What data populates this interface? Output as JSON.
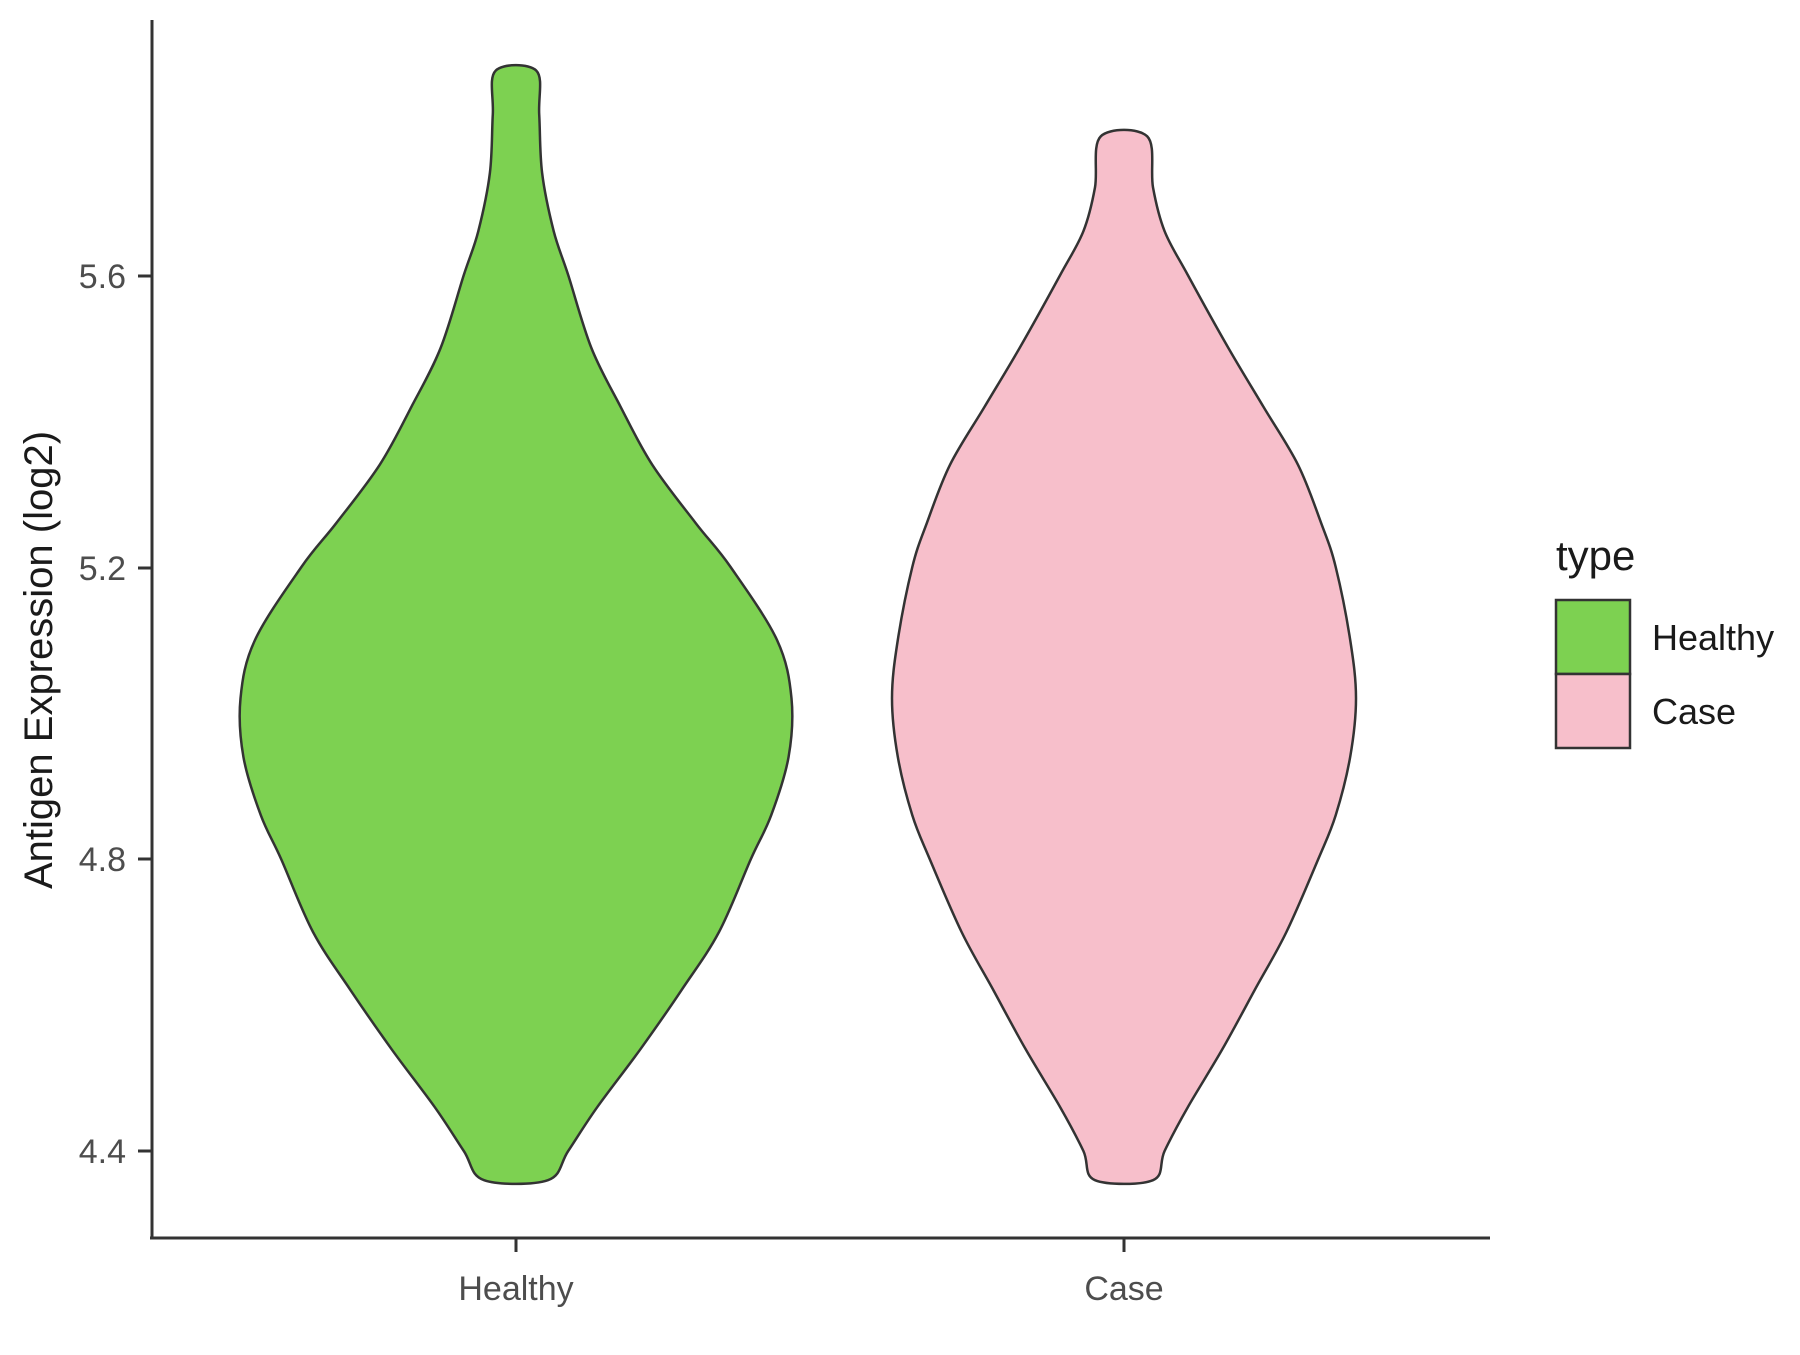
{
  "chart_data": {
    "type": "violin",
    "title": "",
    "xlabel": "",
    "ylabel": "Antigen Expression (log2)",
    "categories": [
      "Healthy",
      "Case"
    ],
    "yticks": [
      "5.6",
      "5.2",
      "4.8",
      "4.4"
    ],
    "ytick_values": [
      5.6,
      5.2,
      4.8,
      4.4
    ],
    "ylim": [
      4.3,
      5.95
    ],
    "grid": false,
    "background": "#ffffff",
    "axis_color": "#333333",
    "legend": {
      "title": "type",
      "position": "right",
      "entries": [
        {
          "label": "Healthy",
          "color": "#7dd151 "
        },
        {
          "label": "Case",
          "color": "#f7bfcb"
        }
      ]
    },
    "series": [
      {
        "name": "Healthy",
        "color": "#7dd151",
        "outline": "#333333",
        "density": [
          [
            5.88,
            0.07
          ],
          [
            5.82,
            0.08
          ],
          [
            5.74,
            0.09
          ],
          [
            5.66,
            0.13
          ],
          [
            5.6,
            0.18
          ],
          [
            5.5,
            0.26
          ],
          [
            5.42,
            0.36
          ],
          [
            5.34,
            0.47
          ],
          [
            5.26,
            0.62
          ],
          [
            5.2,
            0.74
          ],
          [
            5.1,
            0.9
          ],
          [
            5.02,
            0.95
          ],
          [
            4.94,
            0.94
          ],
          [
            4.86,
            0.88
          ],
          [
            4.8,
            0.81
          ],
          [
            4.7,
            0.7
          ],
          [
            4.62,
            0.57
          ],
          [
            4.54,
            0.43
          ],
          [
            4.46,
            0.28
          ],
          [
            4.4,
            0.18
          ],
          [
            4.36,
            0.11
          ]
        ]
      },
      {
        "name": "Case",
        "color": "#f7bfcb",
        "outline": "#333333",
        "density": [
          [
            5.79,
            0.08
          ],
          [
            5.72,
            0.1
          ],
          [
            5.66,
            0.14
          ],
          [
            5.6,
            0.22
          ],
          [
            5.5,
            0.36
          ],
          [
            5.42,
            0.48
          ],
          [
            5.34,
            0.6
          ],
          [
            5.26,
            0.68
          ],
          [
            5.2,
            0.73
          ],
          [
            5.1,
            0.78
          ],
          [
            5.02,
            0.8
          ],
          [
            4.94,
            0.78
          ],
          [
            4.86,
            0.73
          ],
          [
            4.8,
            0.67
          ],
          [
            4.7,
            0.56
          ],
          [
            4.62,
            0.45
          ],
          [
            4.54,
            0.34
          ],
          [
            4.46,
            0.22
          ],
          [
            4.4,
            0.14
          ],
          [
            4.36,
            0.1
          ]
        ]
      }
    ]
  }
}
